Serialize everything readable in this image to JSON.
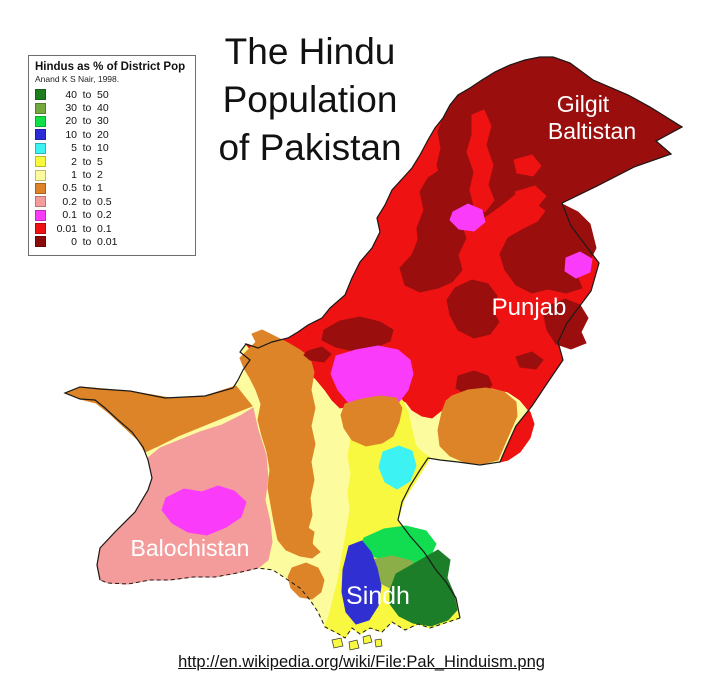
{
  "title": {
    "lines": [
      "The Hindu",
      "Population",
      "of Pakistan"
    ]
  },
  "legend": {
    "title": "Hindus as % of District Pop",
    "source": "Anand K S Nair, 1998.",
    "to_word": "to",
    "rows": [
      {
        "from": "40",
        "to": "50",
        "color": "#1E7D1E"
      },
      {
        "from": "30",
        "to": "40",
        "color": "#74A83C"
      },
      {
        "from": "20",
        "to": "30",
        "color": "#0FE045"
      },
      {
        "from": "10",
        "to": "20",
        "color": "#2B2BD8"
      },
      {
        "from": "5",
        "to": "10",
        "color": "#3CF2F2"
      },
      {
        "from": "2",
        "to": "5",
        "color": "#F8F83C"
      },
      {
        "from": "1",
        "to": "2",
        "color": "#FCFC9F"
      },
      {
        "from": "0.5",
        "to": "1",
        "color": "#DD8428"
      },
      {
        "from": "0.2",
        "to": "0.5",
        "color": "#F49C9C"
      },
      {
        "from": "0.1",
        "to": "0.2",
        "color": "#FA3CFA"
      },
      {
        "from": "0.01",
        "to": "0.1",
        "color": "#EE1212"
      },
      {
        "from": "0",
        "to": "0.01",
        "color": "#8B0A0A"
      }
    ]
  },
  "map_labels": {
    "gilgit_line1": "Gilgit",
    "gilgit_line2": "Baltistan",
    "punjab": "Punjab",
    "balochistan": "Balochistan",
    "sindh": "Sindh"
  },
  "footer": {
    "url": "http://en.wikipedia.org/wiki/File:Pak_Hinduism.png"
  },
  "palette": {
    "red": "#EE1212",
    "dark_red": "#9A0E0E",
    "magenta": "#FA3CFA",
    "orange": "#DD8428",
    "salmon": "#F49C9C",
    "pale_yellow": "#FCFC9F",
    "yellow": "#F8F840",
    "cyan": "#3CF2F2",
    "blue": "#3030D2",
    "green": "#12DC50",
    "olive": "#8CAE48",
    "dark_green": "#1C7E28",
    "border": "#1A1A1A"
  }
}
